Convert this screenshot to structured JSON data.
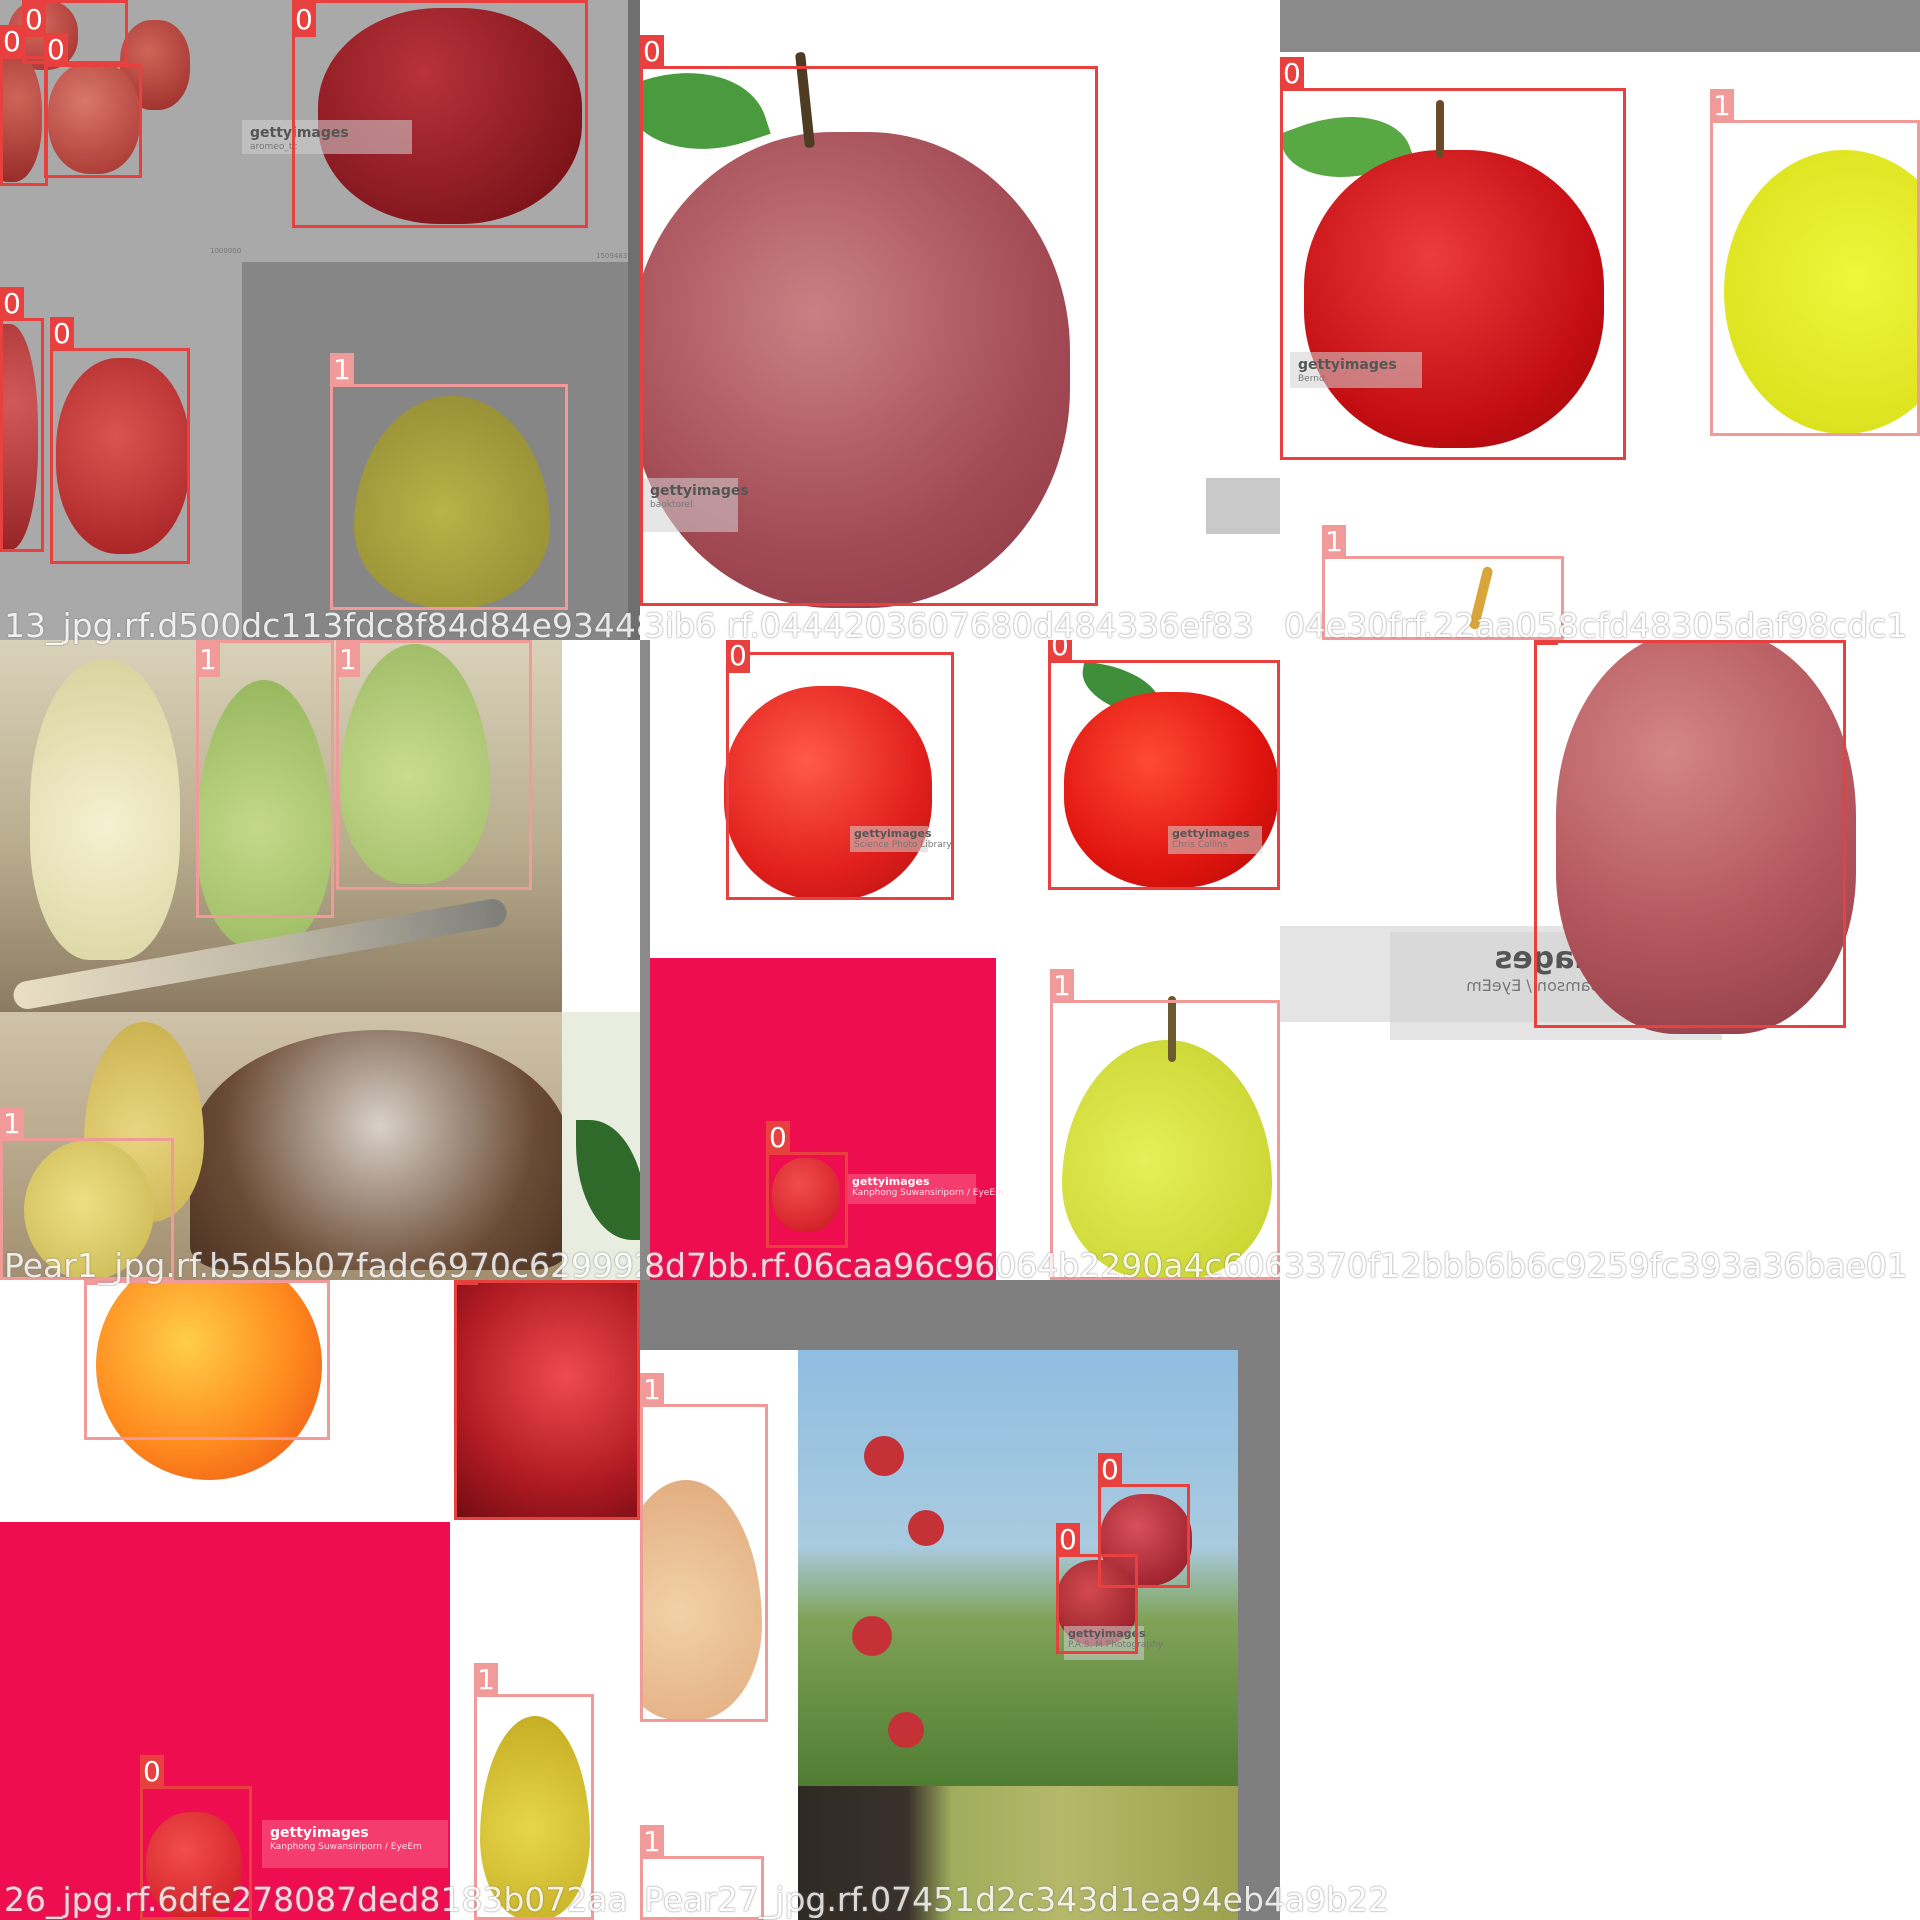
{
  "colors": {
    "class_0": "#e8403f",
    "class_1": "#f19a9a",
    "gray_panel": "#a9a9a9",
    "hot_pink": "#ee0d4f"
  },
  "box_labels": {
    "class_0": "0",
    "class_1": "1"
  },
  "filenames": {
    "tile1": "13_jpg.rf.d500dc113fdc8f84d84e93448",
    "tile2": "3ib6 rf.0444203607680d484336ef83",
    "tile3": "04e30frf.22aa058cfd48305daf98cdc1",
    "tile4": "Pear1_jpg.rf.b5d5b07fadc6970c6299928",
    "tile5": "8d7bb.rf.06caa96c96064b2290a4c6065",
    "tile6": "3370f12bbb6b6c9259fc393a36bae01",
    "tile7": "26_jpg.rf.6dfe278087ded8183b072aa",
    "tile8": "Pear27_jpg.rf.07451d2c343d1ea94eb4a9b22"
  },
  "watermarks": {
    "brand": "gettyimages",
    "credits": {
      "wm1": "aromeo_tc",
      "wm2": "baoktorel",
      "wm3": "Bernd",
      "wm4": "Science Photo Library",
      "wm5": "Chris Collins",
      "wm6": "Frank Jurgen Samson / EyeEm",
      "wm7": "Kanphong Suwansiriporn / EyeEm",
      "wm8": "P.A.S. M Photography"
    }
  },
  "small_text": {
    "stamp1": "1000000",
    "stamp2": "15094831"
  }
}
